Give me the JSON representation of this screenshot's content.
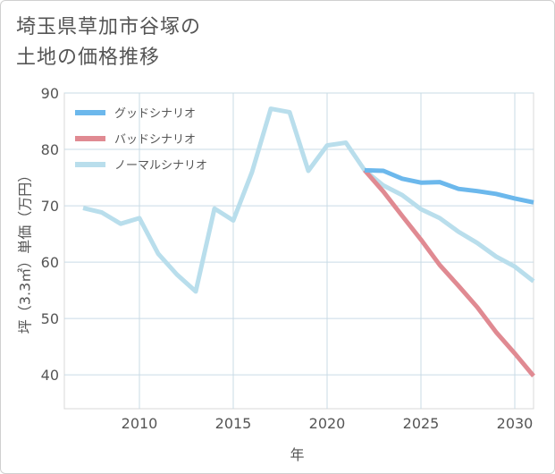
{
  "chart_data": {
    "type": "line",
    "title": "埼玉県草加市谷塚の\n土地の価格推移",
    "xlabel": "年",
    "ylabel": "坪（3.3㎡）単価（万円）",
    "xlim": [
      2006,
      2031
    ],
    "ylim": [
      34,
      90
    ],
    "yticks": [
      40,
      50,
      60,
      70,
      80,
      90
    ],
    "xticks": [
      2010,
      2015,
      2020,
      2025,
      2030
    ],
    "grid": true,
    "legend_position": "top-left",
    "series": [
      {
        "name": "グッドシナリオ",
        "color": "#6cb8ec",
        "x": [
          2022,
          2023,
          2024,
          2025,
          2026,
          2027,
          2028,
          2029,
          2030,
          2031
        ],
        "y": [
          76.3,
          76.2,
          74.8,
          74.1,
          74.2,
          73.0,
          72.6,
          72.1,
          71.3,
          70.6
        ]
      },
      {
        "name": "バッドシナリオ",
        "color": "#e08a92",
        "x": [
          2022,
          2023,
          2024,
          2025,
          2026,
          2027,
          2028,
          2029,
          2030,
          2031
        ],
        "y": [
          76.3,
          72.5,
          68.2,
          64.0,
          59.5,
          55.8,
          52.0,
          47.6,
          43.8,
          39.8
        ]
      },
      {
        "name": "ノーマルシナリオ",
        "color": "#b9deec",
        "x": [
          2007,
          2008,
          2009,
          2010,
          2011,
          2012,
          2013,
          2014,
          2015,
          2016,
          2017,
          2018,
          2019,
          2020,
          2021,
          2022,
          2023,
          2024,
          2025,
          2026,
          2027,
          2028,
          2029,
          2030,
          2031
        ],
        "y": [
          69.6,
          68.8,
          66.8,
          67.8,
          61.5,
          57.8,
          54.8,
          69.5,
          67.4,
          76.0,
          87.2,
          86.6,
          76.2,
          80.7,
          81.2,
          76.3,
          73.6,
          71.9,
          69.4,
          67.8,
          65.4,
          63.4,
          61.0,
          59.2,
          56.6
        ]
      }
    ]
  }
}
